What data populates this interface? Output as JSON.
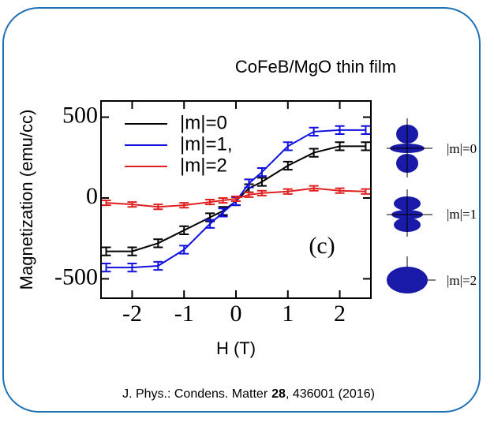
{
  "chart_data": {
    "type": "line",
    "title": "CoFeB/MgO thin film",
    "x_label": "H (T)",
    "y_label": "Magnetization (emu/cc)",
    "annotation": "(c)",
    "x": [
      -2.5,
      -2,
      -1.5,
      -1,
      -0.5,
      -0.25,
      0,
      0.25,
      0.5,
      1,
      1.5,
      2,
      2.5
    ],
    "series": [
      {
        "name": "|m|=0",
        "color": "#000000",
        "error": 25,
        "values": [
          -330,
          -330,
          -280,
          -200,
          -120,
          -80,
          -20,
          60,
          100,
          200,
          280,
          320,
          320
        ]
      },
      {
        "name": "|m|=1,",
        "color": "#1010e0",
        "error": 25,
        "values": [
          -430,
          -430,
          -420,
          -320,
          -160,
          -90,
          -20,
          90,
          160,
          320,
          410,
          420,
          420
        ]
      },
      {
        "name": "|m|=2",
        "color": "#e02020",
        "error": 15,
        "values": [
          -30,
          -40,
          -55,
          -45,
          -25,
          -15,
          -5,
          20,
          30,
          40,
          60,
          45,
          40
        ]
      }
    ],
    "xlim": [
      -2.6,
      2.6
    ],
    "ylim": [
      -620,
      600
    ],
    "xticks": [
      -2,
      -1,
      0,
      1,
      2
    ],
    "yticks": [
      -500,
      0,
      500
    ]
  },
  "orbitals": {
    "labels": [
      "|m|=0",
      "|m|=1",
      "|m|=2"
    ]
  },
  "citation": {
    "journal": "J. Phys.: Condens. Matter",
    "volume": "28",
    "rest": ", 436001 (2016)"
  }
}
